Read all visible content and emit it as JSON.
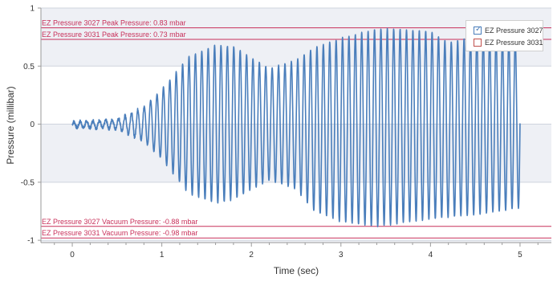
{
  "chart_data": {
    "type": "line",
    "xlabel": "Time (sec)",
    "ylabel": "Pressure (millibar)",
    "xlim": [
      -0.35,
      5.35
    ],
    "ylim": [
      -1.02,
      1.0
    ],
    "x_ticks": [
      "0",
      "1",
      "2",
      "3",
      "4",
      "5"
    ],
    "y_ticks": [
      "1",
      "0.5",
      "0",
      "-0.5",
      "-1"
    ],
    "grid": true,
    "legend_position": "top-right",
    "series": [
      {
        "name": "EZ Pressure 3027",
        "color": "#4a7ebb",
        "checked": true,
        "visible": true,
        "sample_rate_hz": 500,
        "time_range": [
          0,
          5.0
        ],
        "oscillation_hz": 14,
        "envelope_t": [
          0,
          0.5,
          0.8,
          1.0,
          1.3,
          1.6,
          1.8,
          2.2,
          2.5,
          2.7,
          3.0,
          3.4,
          3.6,
          4.0,
          4.2,
          4.5,
          5.0
        ],
        "envelope_pos": [
          0.02,
          0.04,
          0.15,
          0.3,
          0.58,
          0.68,
          0.67,
          0.48,
          0.55,
          0.66,
          0.74,
          0.82,
          0.82,
          0.8,
          0.7,
          0.76,
          0.73
        ],
        "envelope_neg": [
          -0.03,
          -0.04,
          -0.15,
          -0.3,
          -0.6,
          -0.68,
          -0.65,
          -0.48,
          -0.56,
          -0.75,
          -0.84,
          -0.88,
          -0.86,
          -0.82,
          -0.8,
          -0.78,
          -0.72
        ]
      },
      {
        "name": "EZ Pressure 3031",
        "color": "#c0504d",
        "checked": false,
        "visible": false
      }
    ],
    "reference_lines": [
      {
        "label": "EZ Pressure 3027 Peak Pressure: 0.83 mbar",
        "y": 0.83,
        "color": "#c8305a"
      },
      {
        "label": "EZ Pressure 3031 Peak Pressure: 0.73 mbar",
        "y": 0.73,
        "color": "#c8305a"
      },
      {
        "label": "EZ Pressure 3027 Vacuum Pressure: -0.88 mbar",
        "y": -0.88,
        "color": "#c8305a"
      },
      {
        "label": "EZ Pressure 3031 Vacuum Pressure: -0.98 mbar",
        "y": -0.98,
        "color": "#c8305a"
      }
    ]
  }
}
